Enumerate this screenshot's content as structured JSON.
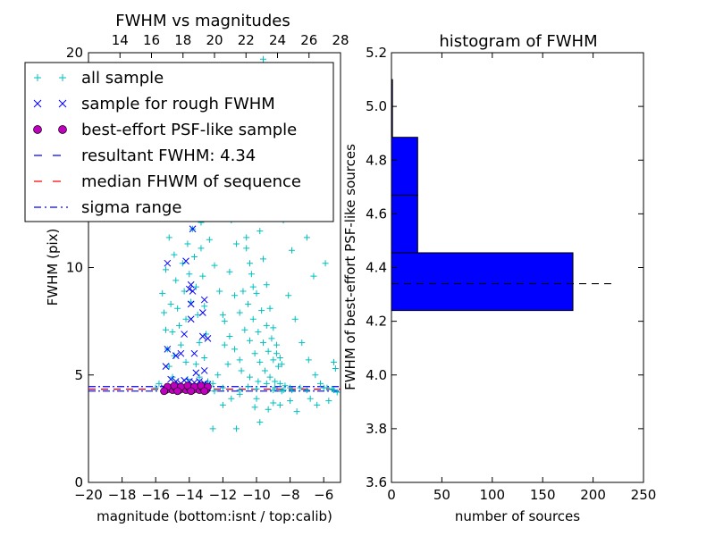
{
  "figure": {
    "background": "#ffffff"
  },
  "legend": {
    "placement": "upper-left of left plot",
    "entries": [
      {
        "label": "all sample",
        "marker": "+",
        "color": "#00bfbf"
      },
      {
        "label": "sample for rough FWHM",
        "marker": "x",
        "color": "#0000ff"
      },
      {
        "label": "best-effort PSF-like sample",
        "marker": "o",
        "color": "#bf00bf"
      },
      {
        "label": "resultant FWHM: 4.34",
        "marker": "dashed",
        "color": "#0000ff"
      },
      {
        "label": "median FHWM of sequence",
        "marker": "dashed",
        "color": "#ff0000"
      },
      {
        "label": "sigma range",
        "marker": "dashdot",
        "color": "#0000ff"
      }
    ]
  },
  "chart_data": [
    {
      "type": "scatter",
      "title": "FWHM vs magnitudes",
      "xlabel": "magnitude (bottom:isnt / top:calib)",
      "ylabel": "FWHM (pix)",
      "xlim": [
        -20,
        -5
      ],
      "ylim": [
        0,
        20
      ],
      "x_ticks": [
        -20,
        -18,
        -16,
        -14,
        -12,
        -10,
        -8,
        -6
      ],
      "x_tick_labels": [
        "−20",
        "−18",
        "−16",
        "−14",
        "−12",
        "−10",
        "−8",
        "−6"
      ],
      "y_ticks": [
        0,
        5,
        10,
        20
      ],
      "y_tick_labels": [
        "0",
        "5",
        "10",
        "20"
      ],
      "top_xlim": [
        12,
        28
      ],
      "top_x_ticks": [
        14,
        16,
        18,
        20,
        22,
        24,
        26,
        28
      ],
      "top_x_tick_labels": [
        "14",
        "16",
        "18",
        "20",
        "22",
        "24",
        "26",
        "28"
      ],
      "grid": false,
      "lines": [
        {
          "name": "resultant FWHM: 4.34",
          "y": 4.34,
          "style": "dashed",
          "color": "#0000ff"
        },
        {
          "name": "median FHWM of sequence",
          "y": 4.34,
          "style": "dashed",
          "color": "#ff0000"
        },
        {
          "name": "sigma range",
          "y": 4.25,
          "style": "dashdot",
          "color": "#0000ff"
        },
        {
          "name": "sigma range",
          "y": 4.46,
          "style": "dashdot",
          "color": "#0000ff"
        }
      ],
      "series": [
        {
          "name": "all sample",
          "marker": "+",
          "color": "#00bfbf",
          "points": [
            [
              -15.6,
              8.8
            ],
            [
              -15.5,
              7.9
            ],
            [
              -15.4,
              7.1
            ],
            [
              -15.3,
              6.2
            ],
            [
              -15.2,
              5.4
            ],
            [
              -15.4,
              9.9
            ],
            [
              -15.1,
              8.3
            ],
            [
              -15.0,
              7.0
            ],
            [
              -14.9,
              10.6
            ],
            [
              -14.8,
              9.4
            ],
            [
              -14.7,
              8.1
            ],
            [
              -14.6,
              7.3
            ],
            [
              -14.5,
              6.4
            ],
            [
              -14.4,
              10.2
            ],
            [
              -14.3,
              8.9
            ],
            [
              -14.2,
              7.6
            ],
            [
              -14.1,
              11.1
            ],
            [
              -14.0,
              9.7
            ],
            [
              -13.9,
              8.4
            ],
            [
              -13.8,
              11.8
            ],
            [
              -13.7,
              10.5
            ],
            [
              -13.6,
              9.1
            ],
            [
              -13.5,
              7.8
            ],
            [
              -13.4,
              6.5
            ],
            [
              -13.3,
              10.9
            ],
            [
              -13.2,
              9.6
            ],
            [
              -13.1,
              8.2
            ],
            [
              -13.0,
              6.9
            ],
            [
              -15.2,
              11.4
            ],
            [
              -14.5,
              12.3
            ],
            [
              -13.8,
              12.8
            ],
            [
              -13.3,
              12.1
            ],
            [
              -14.9,
              5.9
            ],
            [
              -14.2,
              5.6
            ],
            [
              -13.6,
              5.5
            ],
            [
              -13.1,
              5.8
            ],
            [
              -15.0,
              4.9
            ],
            [
              -14.1,
              4.8
            ],
            [
              -13.4,
              4.9
            ],
            [
              -12.9,
              4.7
            ],
            [
              -11.8,
              13.4
            ],
            [
              -11.5,
              12.2
            ],
            [
              -11.2,
              11.1
            ],
            [
              -11.0,
              13.9
            ],
            [
              -10.8,
              12.6
            ],
            [
              -10.6,
              11.4
            ],
            [
              -10.4,
              10.2
            ],
            [
              -10.2,
              9.1
            ],
            [
              -10.0,
              12.9
            ],
            [
              -9.8,
              11.7
            ],
            [
              -9.6,
              10.4
            ],
            [
              -9.4,
              9.2
            ],
            [
              -9.2,
              8.1
            ],
            [
              -9.0,
              7.2
            ],
            [
              -8.8,
              6.4
            ],
            [
              -8.6,
              5.8
            ],
            [
              -11.6,
              9.8
            ],
            [
              -11.3,
              8.7
            ],
            [
              -11.0,
              7.9
            ],
            [
              -10.7,
              7.1
            ],
            [
              -10.4,
              6.6
            ],
            [
              -10.1,
              6.0
            ],
            [
              -9.8,
              5.6
            ],
            [
              -9.5,
              5.2
            ],
            [
              -9.2,
              4.9
            ],
            [
              -8.9,
              4.7
            ],
            [
              -8.6,
              4.6
            ],
            [
              -8.3,
              4.5
            ],
            [
              -11.9,
              7.5
            ],
            [
              -11.6,
              6.8
            ],
            [
              -11.3,
              6.2
            ],
            [
              -11.0,
              5.7
            ],
            [
              -10.8,
              8.9
            ],
            [
              -10.5,
              8.3
            ],
            [
              -10.2,
              7.6
            ],
            [
              -9.9,
              7.0
            ],
            [
              -9.6,
              6.5
            ],
            [
              -9.3,
              6.1
            ],
            [
              -9.0,
              5.7
            ],
            [
              -8.7,
              5.4
            ],
            [
              -10.6,
              10.9
            ],
            [
              -10.3,
              9.7
            ],
            [
              -10.0,
              8.8
            ],
            [
              -9.7,
              8.0
            ],
            [
              -9.4,
              7.3
            ],
            [
              -9.1,
              6.7
            ],
            [
              -8.8,
              6.0
            ],
            [
              -8.5,
              5.5
            ],
            [
              -10.9,
              5.2
            ],
            [
              -10.4,
              4.9
            ],
            [
              -9.9,
              4.7
            ],
            [
              -9.4,
              4.6
            ],
            [
              -8.9,
              4.4
            ],
            [
              -8.4,
              4.3
            ],
            [
              -7.9,
              4.3
            ],
            [
              -7.4,
              4.4
            ],
            [
              -12.4,
              15.6
            ],
            [
              -11.6,
              16.9
            ],
            [
              -10.9,
              17.8
            ],
            [
              -10.1,
              18.6
            ],
            [
              -9.6,
              19.7
            ],
            [
              -9.2,
              17.1
            ],
            [
              -10.5,
              15.3
            ],
            [
              -11.2,
              14.8
            ],
            [
              -12.8,
              11.3
            ],
            [
              -12.5,
              10.1
            ],
            [
              -12.2,
              8.9
            ],
            [
              -12.0,
              7.8
            ],
            [
              -11.9,
              6.4
            ],
            [
              -11.7,
              5.5
            ],
            [
              -12.3,
              5.0
            ],
            [
              -12.6,
              4.6
            ],
            [
              -8.1,
              8.7
            ],
            [
              -7.7,
              7.6
            ],
            [
              -7.3,
              6.5
            ],
            [
              -6.9,
              5.7
            ],
            [
              -6.5,
              5.0
            ],
            [
              -6.2,
              4.6
            ],
            [
              -5.8,
              4.4
            ],
            [
              -5.4,
              4.3
            ],
            [
              -7.0,
              11.4
            ],
            [
              -6.6,
              9.6
            ],
            [
              -8.4,
              12.2
            ],
            [
              -7.9,
              10.8
            ],
            [
              -5.9,
              10.2
            ],
            [
              -5.4,
              5.6
            ],
            [
              -6.8,
              3.9
            ],
            [
              -8.0,
              3.8
            ],
            [
              -9.0,
              3.7
            ],
            [
              -10.0,
              3.9
            ],
            [
              -11.0,
              4.1
            ],
            [
              -11.5,
              3.9
            ],
            [
              -12.0,
              3.6
            ],
            [
              -12.6,
              2.5
            ],
            [
              -11.2,
              2.5
            ],
            [
              -9.8,
              2.8
            ],
            [
              -10.1,
              3.5
            ],
            [
              -9.3,
              3.4
            ],
            [
              -8.6,
              3.6
            ],
            [
              -7.6,
              3.3
            ],
            [
              -6.4,
              3.6
            ],
            [
              -5.7,
              3.8
            ],
            [
              -5.2,
              4.2
            ],
            [
              -5.3,
              5.3
            ],
            [
              -16.0,
              4.4
            ],
            [
              -15.0,
              4.3
            ],
            [
              -14.0,
              4.35
            ],
            [
              -13.0,
              4.3
            ],
            [
              -12.0,
              4.4
            ],
            [
              -11.0,
              4.3
            ],
            [
              -10.0,
              4.35
            ],
            [
              -9.0,
              4.3
            ],
            [
              -8.0,
              4.4
            ],
            [
              -7.0,
              4.3
            ],
            [
              -6.0,
              4.4
            ],
            [
              -5.5,
              4.35
            ],
            [
              -15.8,
              4.6
            ],
            [
              -12.5,
              4.25
            ],
            [
              -10.5,
              4.45
            ],
            [
              -8.5,
              4.25
            ]
          ]
        },
        {
          "name": "sample for rough FWHM",
          "marker": "x",
          "color": "#0000ff",
          "points": [
            [
              -13.8,
              11.8
            ],
            [
              -13.7,
              12.3
            ],
            [
              -15.3,
              10.2
            ],
            [
              -14.2,
              10.3
            ],
            [
              -13.9,
              9.2
            ],
            [
              -13.8,
              8.9
            ],
            [
              -14.0,
              9.0
            ],
            [
              -13.9,
              7.6
            ],
            [
              -13.9,
              8.3
            ],
            [
              -13.1,
              8.5
            ],
            [
              -13.2,
              7.9
            ],
            [
              -13.2,
              6.8
            ],
            [
              -12.9,
              6.7
            ],
            [
              -14.3,
              6.9
            ],
            [
              -15.3,
              6.2
            ],
            [
              -14.5,
              6.0
            ],
            [
              -14.8,
              5.9
            ],
            [
              -13.7,
              6.0
            ],
            [
              -13.1,
              5.2
            ],
            [
              -15.4,
              5.4
            ],
            [
              -13.6,
              5.1
            ],
            [
              -15.1,
              4.8
            ],
            [
              -14.8,
              4.7
            ],
            [
              -14.5,
              4.6
            ],
            [
              -14.3,
              4.75
            ],
            [
              -14.0,
              4.7
            ],
            [
              -13.7,
              4.65
            ],
            [
              -13.4,
              4.7
            ],
            [
              -13.1,
              4.6
            ],
            [
              -12.9,
              4.55
            ],
            [
              -15.5,
              4.4
            ],
            [
              -15.2,
              4.35
            ],
            [
              -14.9,
              4.3
            ],
            [
              -14.6,
              4.4
            ],
            [
              -14.3,
              4.35
            ],
            [
              -14.0,
              4.3
            ],
            [
              -13.7,
              4.4
            ],
            [
              -13.4,
              4.35
            ],
            [
              -13.1,
              4.3
            ],
            [
              -12.9,
              4.4
            ]
          ]
        },
        {
          "name": "best-effort PSF-like sample",
          "marker": "o",
          "color": "#bf00bf",
          "points": [
            [
              -15.4,
              4.3
            ],
            [
              -15.2,
              4.35
            ],
            [
              -15.0,
              4.3
            ],
            [
              -14.8,
              4.4
            ],
            [
              -14.6,
              4.3
            ],
            [
              -14.4,
              4.35
            ],
            [
              -14.2,
              4.3
            ],
            [
              -14.0,
              4.4
            ],
            [
              -13.8,
              4.3
            ],
            [
              -13.6,
              4.35
            ],
            [
              -13.4,
              4.3
            ],
            [
              -13.2,
              4.4
            ],
            [
              -13.0,
              4.3
            ],
            [
              -15.3,
              4.45
            ],
            [
              -14.9,
              4.5
            ],
            [
              -14.5,
              4.45
            ],
            [
              -14.1,
              4.5
            ],
            [
              -13.7,
              4.45
            ],
            [
              -13.3,
              4.5
            ],
            [
              -12.9,
              4.45
            ],
            [
              -15.5,
              4.25
            ],
            [
              -14.7,
              4.25
            ],
            [
              -13.9,
              4.25
            ],
            [
              -13.1,
              4.25
            ]
          ]
        }
      ]
    },
    {
      "type": "bar",
      "orientation": "horizontal",
      "title": "histogram of FWHM",
      "xlabel": "number of sources",
      "ylabel": "FWHM of best-effort PSF-like sources",
      "xlim": [
        0,
        250
      ],
      "ylim": [
        3.6,
        5.2
      ],
      "x_ticks": [
        0,
        50,
        100,
        150,
        200,
        250
      ],
      "x_tick_labels": [
        "0",
        "50",
        "100",
        "150",
        "200",
        "250"
      ],
      "y_ticks": [
        3.6,
        3.8,
        4.0,
        4.2,
        4.4,
        4.6,
        4.8,
        5.0,
        5.2
      ],
      "y_tick_labels": [
        "3.6",
        "3.8",
        "4.0",
        "4.2",
        "4.4",
        "4.6",
        "4.8",
        "5.0",
        "5.2"
      ],
      "grid": false,
      "bars": [
        {
          "y_from": 4.24,
          "y_to": 4.455,
          "count": 180
        },
        {
          "y_from": 4.455,
          "y_to": 4.67,
          "count": 26
        },
        {
          "y_from": 4.67,
          "y_to": 4.885,
          "count": 26
        },
        {
          "y_from": 4.885,
          "y_to": 5.1,
          "count": 1
        }
      ],
      "bar_color": "#0000ff",
      "reference_line": {
        "y": 4.34,
        "x_to": 218,
        "style": "dashed",
        "color": "#000000"
      }
    }
  ]
}
